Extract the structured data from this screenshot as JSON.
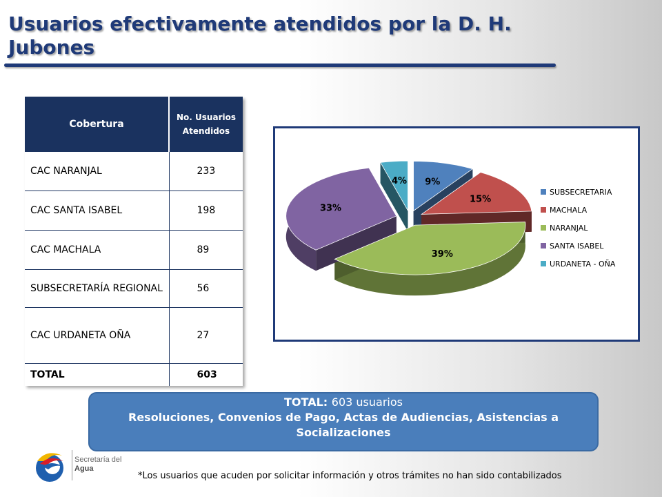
{
  "slide": {
    "title": "Usuarios efectivamente atendidos por la D. H. Jubones"
  },
  "table": {
    "headers": [
      "Cobertura",
      "No. Usuarios Atendidos"
    ],
    "rows": [
      {
        "label": "CAC NARANJAL",
        "value": "233"
      },
      {
        "label": "CAC SANTA ISABEL",
        "value": "198"
      },
      {
        "label": "CAC MACHALA",
        "value": "89"
      },
      {
        "label": "SUBSECRETARÍA REGIONAL",
        "value": "56"
      },
      {
        "label": "CAC URDANETA OÑA",
        "value": "27"
      },
      {
        "label": "TOTAL",
        "value": "603"
      }
    ]
  },
  "chart_data": {
    "type": "pie",
    "style": "3d exploded",
    "series": [
      {
        "name": "SUBSECRETARIA",
        "percent": 9,
        "label": "9%",
        "color": "#4f81bd"
      },
      {
        "name": "MACHALA",
        "percent": 15,
        "label": "15%",
        "color": "#c0504d"
      },
      {
        "name": "NARANJAL",
        "percent": 39,
        "label": "39%",
        "color": "#9bbb59"
      },
      {
        "name": "SANTA ISABEL",
        "percent": 33,
        "label": "33%",
        "color": "#8064a2"
      },
      {
        "name": "URDANETA - OÑA",
        "percent": 4,
        "label": "4%",
        "color": "#4bacc6"
      }
    ],
    "legend_position": "right"
  },
  "banner": {
    "total_label": "TOTAL:",
    "total_value": "603 usuarios",
    "description": "Resoluciones, Convenios de Pago, Actas de Audiencias, Asistencias a Socializaciones"
  },
  "logo": {
    "line1": "Secretaría del",
    "line2": "Agua"
  },
  "footnote": "*Los usuarios que acuden por solicitar información y otros trámites no han sido contabilizados"
}
